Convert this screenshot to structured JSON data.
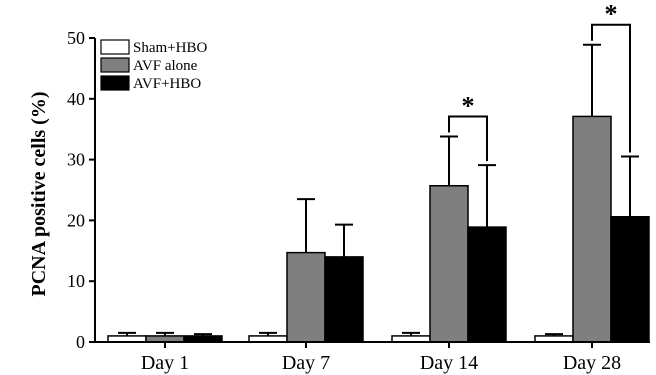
{
  "chart_data": {
    "type": "bar",
    "categories": [
      "Day 1",
      "Day 7",
      "Day 14",
      "Day 28"
    ],
    "series": [
      {
        "name": "Sham+HBO",
        "values": [
          1,
          1,
          1,
          1
        ],
        "errors": [
          0.5,
          0.5,
          0.5,
          0.3
        ],
        "color": "#ffffff"
      },
      {
        "name": "AVF alone",
        "values": [
          1,
          14.7,
          25.7,
          37.1
        ],
        "errors": [
          0.5,
          8.8,
          8.1,
          11.8
        ],
        "color": "#7f7f7f"
      },
      {
        "name": "AVF+HBO",
        "values": [
          1,
          14.0,
          18.9,
          20.6
        ],
        "errors": [
          0.3,
          5.3,
          10.2,
          9.9
        ],
        "color": "#000000"
      }
    ],
    "xlabel": "",
    "ylabel": "PCNA positive cells (%)",
    "ylim": [
      0,
      50
    ],
    "yticks": [
      0,
      10,
      20,
      30,
      40,
      50
    ],
    "legend_position": "top-left",
    "grid": false,
    "annotations": [
      {
        "text": "*",
        "category": "Day 14",
        "between": [
          "AVF alone",
          "AVF+HBO"
        ]
      },
      {
        "text": "*",
        "category": "Day 28",
        "between": [
          "AVF alone",
          "AVF+HBO"
        ]
      }
    ]
  }
}
